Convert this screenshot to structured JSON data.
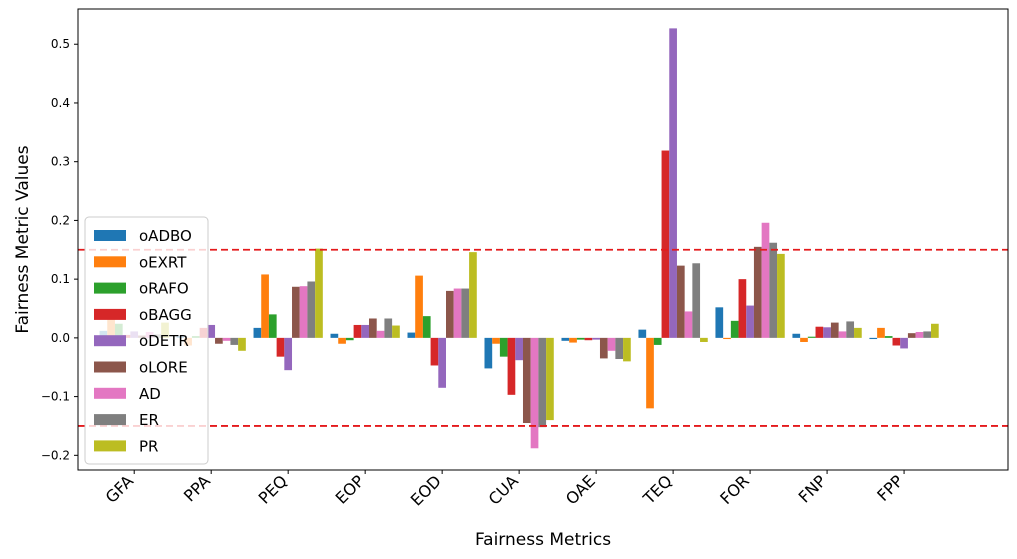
{
  "chart_data": {
    "type": "bar",
    "xlabel": "Fairness Metrics",
    "ylabel": "Fairness Metric Values",
    "categories": [
      "GFA",
      "PPA",
      "PEQ",
      "EOP",
      "EOD",
      "CUA",
      "OAE",
      "TEQ",
      "FOR",
      "FNP",
      "FPP"
    ],
    "ylim": [
      -0.225,
      0.56
    ],
    "yticks": [
      -0.2,
      -0.1,
      0.0,
      0.1,
      0.2,
      0.3,
      0.4,
      0.5
    ],
    "ytick_labels": [
      "−0.2",
      "−0.1",
      "0.0",
      "0.1",
      "0.2",
      "0.3",
      "0.4",
      "0.5"
    ],
    "threshold_lines": [
      0.15,
      -0.15
    ],
    "threshold_color": "#e41a1c",
    "legend_position": "lower-left",
    "grid": false,
    "series": [
      {
        "name": "oADBO",
        "color": "#1f77b4",
        "values": [
          0.012,
          0.003,
          0.017,
          0.007,
          0.009,
          -0.052,
          -0.005,
          0.014,
          0.052,
          0.007,
          -0.002
        ]
      },
      {
        "name": "oEXRT",
        "color": "#ff7f0e",
        "values": [
          0.043,
          -0.013,
          0.108,
          -0.01,
          0.106,
          -0.01,
          -0.008,
          -0.12,
          -0.002,
          -0.007,
          0.017
        ]
      },
      {
        "name": "oRAFO",
        "color": "#2ca02c",
        "values": [
          0.024,
          0.003,
          0.04,
          -0.004,
          0.037,
          -0.032,
          -0.003,
          -0.012,
          0.029,
          0.002,
          0.003
        ]
      },
      {
        "name": "oBAGG",
        "color": "#d62728",
        "values": [
          0.005,
          0.017,
          -0.032,
          0.022,
          -0.047,
          -0.097,
          -0.004,
          0.319,
          0.1,
          0.019,
          -0.013
        ]
      },
      {
        "name": "oDETR",
        "color": "#9467bd",
        "values": [
          0.011,
          0.022,
          -0.055,
          0.022,
          -0.085,
          -0.038,
          -0.003,
          0.527,
          0.055,
          0.018,
          -0.018
        ]
      },
      {
        "name": "oLORE",
        "color": "#8c564b",
        "values": [
          0.004,
          -0.01,
          0.087,
          0.033,
          0.08,
          -0.145,
          -0.035,
          0.123,
          0.155,
          0.026,
          0.008
        ]
      },
      {
        "name": "AD",
        "color": "#e377c2",
        "values": [
          0.01,
          -0.005,
          0.088,
          0.012,
          0.084,
          -0.188,
          -0.022,
          0.045,
          0.196,
          0.011,
          0.01
        ]
      },
      {
        "name": "ER",
        "color": "#7f7f7f",
        "values": [
          0.006,
          -0.012,
          0.096,
          0.033,
          0.084,
          -0.152,
          -0.036,
          0.127,
          0.162,
          0.028,
          0.011
        ]
      },
      {
        "name": "PR",
        "color": "#bcbd22",
        "values": [
          0.026,
          -0.022,
          0.152,
          0.021,
          0.146,
          -0.14,
          -0.04,
          -0.007,
          0.143,
          0.017,
          0.024
        ]
      }
    ]
  }
}
